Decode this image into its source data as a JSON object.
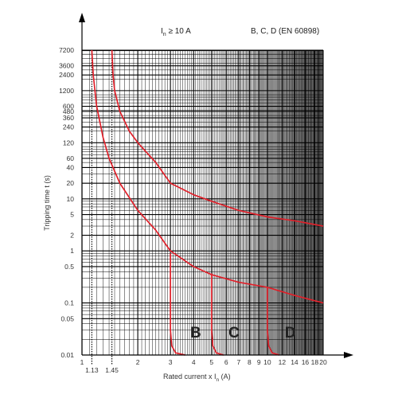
{
  "chart_data": {
    "type": "line",
    "header_left_main": "I",
    "header_left_sub": "n",
    "header_left_rest": " ≥ 10 A",
    "header_right": "B, C, D (EN 60898)",
    "xlabel_main": "Rated current  x  I",
    "xlabel_sub": "n",
    "xlabel_unit": " (A)",
    "ylabel": "Tripping time  t (s)",
    "x_scale": "log",
    "y_scale": "log",
    "xlim": [
      1,
      20
    ],
    "ylim": [
      0.01,
      7200
    ],
    "grid": true,
    "x_ticks": [
      "1",
      "2",
      "3",
      "4",
      "5",
      "6",
      "7",
      "8",
      "9",
      "10",
      "12",
      "14",
      "16",
      "18",
      "20"
    ],
    "x_ticks_extra": [
      "1.13",
      "1.45"
    ],
    "y_ticks": [
      "0.01",
      "0.05",
      "0.1",
      "0.5",
      "1",
      "2",
      "5",
      "10",
      "20",
      "40",
      "60",
      "120",
      "240",
      "360",
      "480",
      "600",
      "1200",
      "2400",
      "3600",
      "7200"
    ],
    "reference_lines_x": [
      1.13,
      1.45
    ],
    "curve_color": "#e0202a",
    "curve_labels": [
      {
        "text": "B",
        "x": 4.1
      },
      {
        "text": "C",
        "x": 6.6
      },
      {
        "text": "D",
        "x": 13.3
      }
    ],
    "series": [
      {
        "role": "upper envelope",
        "points": [
          [
            1.45,
            7200
          ],
          [
            1.47,
            2400
          ],
          [
            1.5,
            1200
          ],
          [
            1.6,
            480
          ],
          [
            1.8,
            200
          ],
          [
            2,
            120
          ],
          [
            2.5,
            50
          ],
          [
            3,
            20
          ],
          [
            4,
            12
          ],
          [
            5,
            9
          ],
          [
            7,
            6
          ],
          [
            10,
            4.5
          ],
          [
            14,
            3.8
          ],
          [
            20,
            3
          ]
        ]
      },
      {
        "role": "lower envelope",
        "points": [
          [
            1.13,
            7200
          ],
          [
            1.15,
            2400
          ],
          [
            1.2,
            600
          ],
          [
            1.3,
            150
          ],
          [
            1.4,
            60
          ],
          [
            1.6,
            20
          ],
          [
            2,
            6
          ],
          [
            2.5,
            2.5
          ],
          [
            3,
            1
          ],
          [
            4,
            0.5
          ],
          [
            5,
            0.35
          ],
          [
            7,
            0.25
          ],
          [
            10,
            0.2
          ],
          [
            14,
            0.14
          ],
          [
            20,
            0.1
          ]
        ]
      },
      {
        "role": "B instantaneous",
        "points": [
          [
            3,
            0.9
          ],
          [
            3,
            0.03
          ],
          [
            3.05,
            0.015
          ],
          [
            3.2,
            0.011
          ],
          [
            3.6,
            0.01
          ]
        ]
      },
      {
        "role": "C instantaneous",
        "points": [
          [
            5,
            0.37
          ],
          [
            5,
            0.03
          ],
          [
            5.08,
            0.015
          ],
          [
            5.3,
            0.011
          ],
          [
            5.8,
            0.01
          ]
        ]
      },
      {
        "role": "D instantaneous",
        "points": [
          [
            10,
            0.2
          ],
          [
            10,
            0.03
          ],
          [
            10.15,
            0.015
          ],
          [
            10.6,
            0.011
          ],
          [
            11.6,
            0.01
          ]
        ]
      }
    ]
  }
}
